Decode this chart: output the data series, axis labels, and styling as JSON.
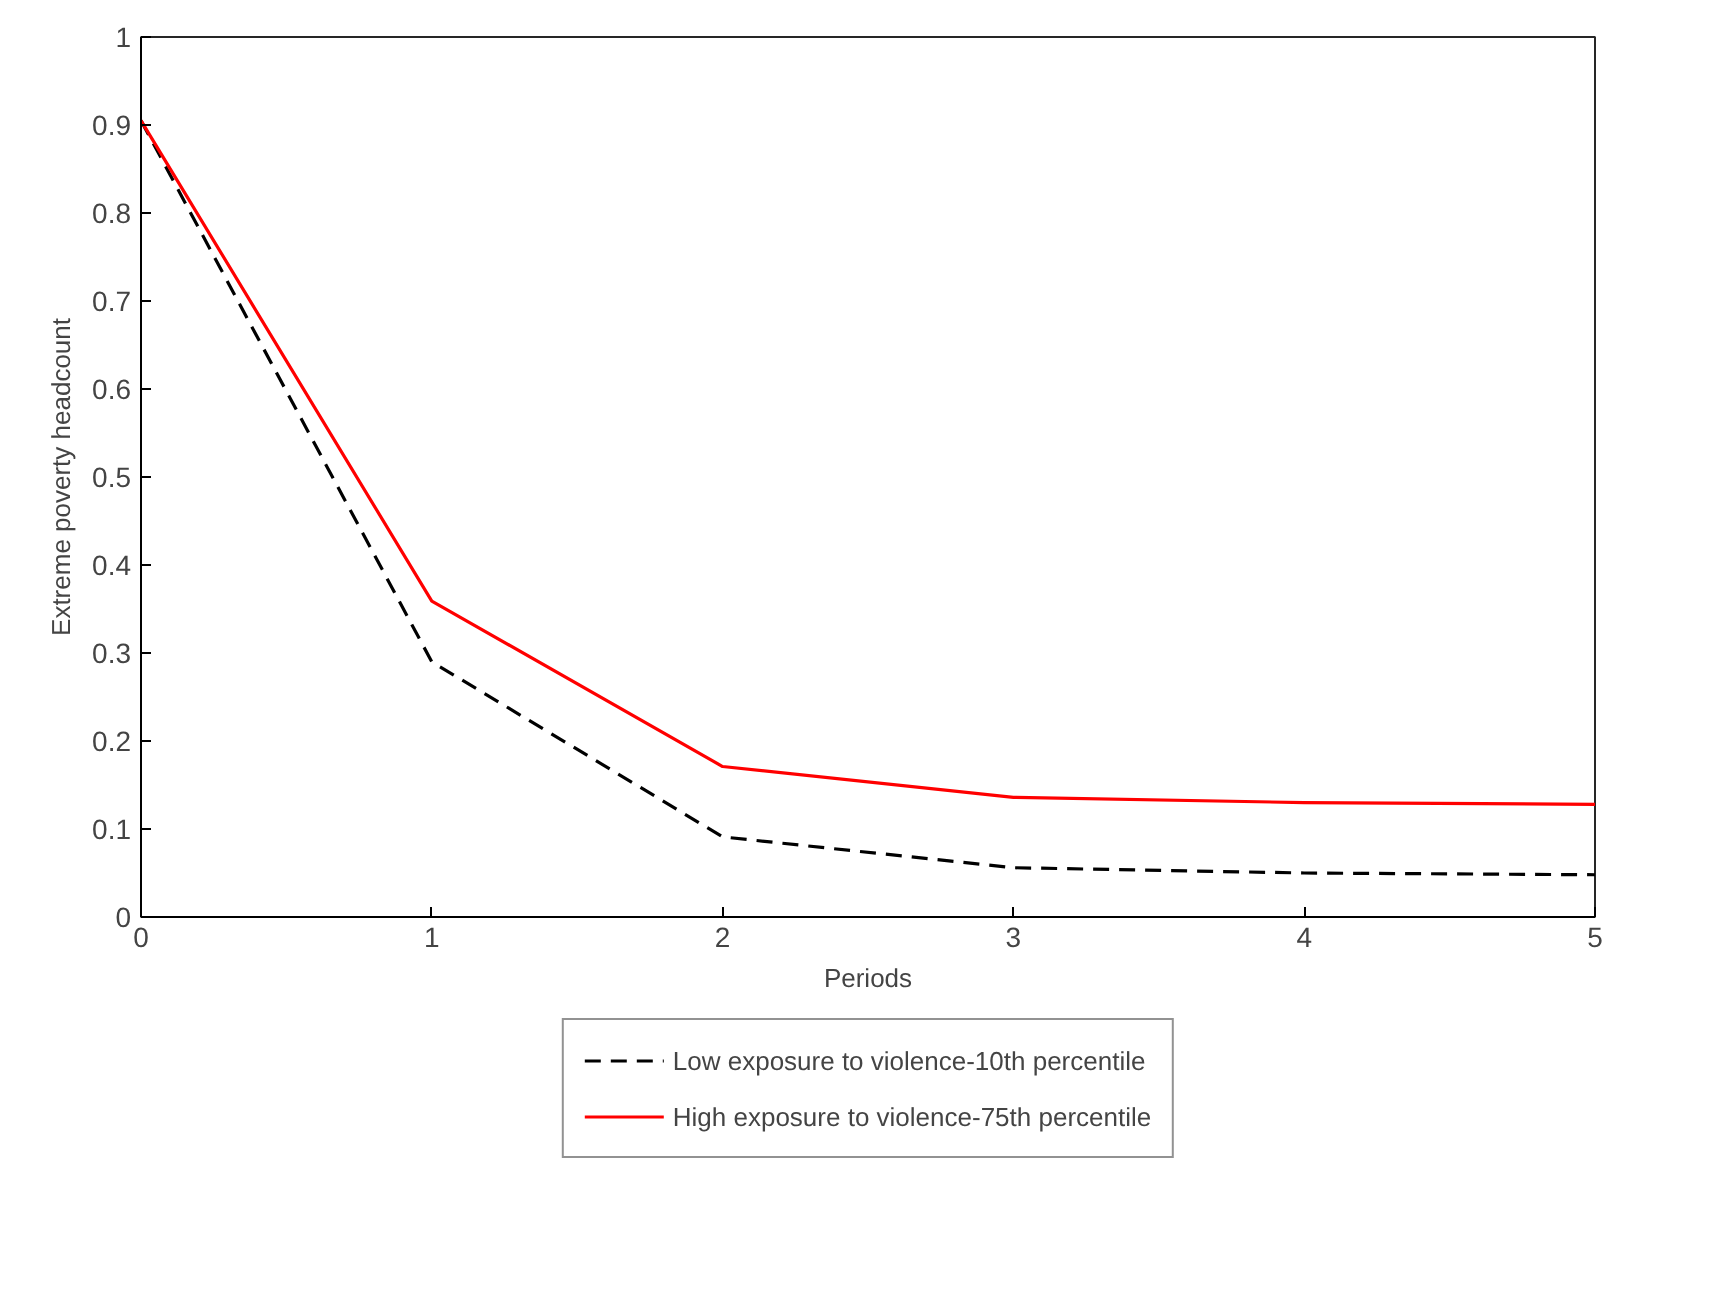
{
  "chart_data": {
    "type": "line",
    "xlabel": "Periods",
    "ylabel": "Extreme poverty headcount",
    "x": [
      0,
      1,
      2,
      3,
      4,
      5
    ],
    "series": [
      {
        "name": "Low exposure to violence-10th percentile",
        "color": "#000000",
        "line_style": "dashed",
        "values": [
          0.905,
          0.29,
          0.091,
          0.056,
          0.05,
          0.048
        ]
      },
      {
        "name": "High exposure to violence-75th percentile",
        "color": "#ff0000",
        "line_style": "solid",
        "values": [
          0.905,
          0.359,
          0.171,
          0.136,
          0.13,
          0.128
        ]
      }
    ],
    "xlim": [
      0,
      5
    ],
    "ylim": [
      0,
      1
    ],
    "xticks": [
      0,
      1,
      2,
      3,
      4,
      5
    ],
    "yticks": [
      0,
      0.1,
      0.2,
      0.3,
      0.4,
      0.5,
      0.6,
      0.7,
      0.8,
      0.9,
      1
    ],
    "grid": false,
    "legend": "bottom",
    "marker": "none"
  }
}
